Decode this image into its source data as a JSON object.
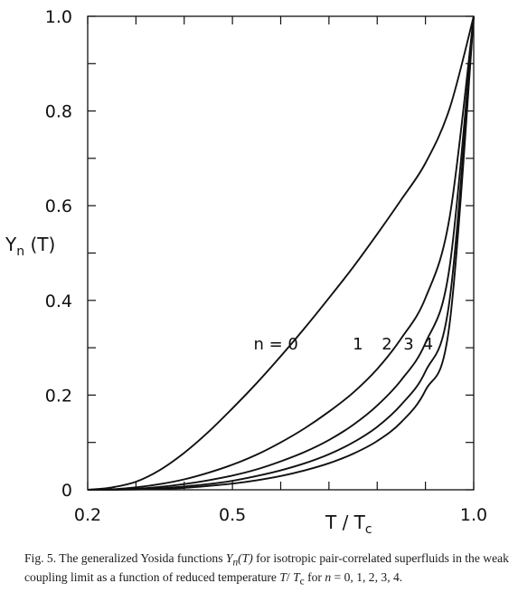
{
  "chart_data": {
    "type": "line",
    "ylabel": {
      "main": "Y",
      "sub": "n",
      "rest": " (T)"
    },
    "xlabel": {
      "main": "T / T",
      "sub": "c"
    },
    "xlim": [
      0.2,
      1.0
    ],
    "ylim": [
      0,
      1.0
    ],
    "x_ticklabels": [
      {
        "value": 0.2,
        "label": "0.2"
      },
      {
        "value": 0.5,
        "label": "0.5"
      },
      {
        "value": 1.0,
        "label": "1.0"
      }
    ],
    "y_ticklabels": [
      {
        "value": 0,
        "label": "0"
      },
      {
        "value": 0.2,
        "label": "0.2"
      },
      {
        "value": 0.4,
        "label": "0.4"
      },
      {
        "value": 0.6,
        "label": "0.6"
      },
      {
        "value": 0.8,
        "label": "0.8"
      },
      {
        "value": 1.0,
        "label": "1.0"
      }
    ],
    "x_minor_ticks": [
      0.3,
      0.4,
      0.6,
      0.7,
      0.8,
      0.9
    ],
    "y_minor_ticks": [
      0.1,
      0.3,
      0.5,
      0.7,
      0.9
    ],
    "grid": false,
    "series": [
      {
        "name": "n = 0",
        "x": [
          0.2,
          0.25,
          0.3,
          0.35,
          0.4,
          0.45,
          0.5,
          0.55,
          0.6,
          0.65,
          0.7,
          0.75,
          0.8,
          0.85,
          0.9,
          0.95,
          1.0
        ],
        "y": [
          0.0,
          0.005,
          0.017,
          0.042,
          0.078,
          0.122,
          0.172,
          0.225,
          0.282,
          0.342,
          0.405,
          0.47,
          0.54,
          0.613,
          0.69,
          0.805,
          1.0
        ]
      },
      {
        "name": "1",
        "x": [
          0.2,
          0.25,
          0.3,
          0.35,
          0.4,
          0.45,
          0.5,
          0.55,
          0.6,
          0.65,
          0.7,
          0.75,
          0.8,
          0.85,
          0.9,
          0.95,
          1.0
        ],
        "y": [
          0.0,
          0.001,
          0.005,
          0.012,
          0.022,
          0.036,
          0.053,
          0.074,
          0.1,
          0.13,
          0.165,
          0.205,
          0.255,
          0.32,
          0.405,
          0.575,
          1.0
        ]
      },
      {
        "name": "2",
        "x": [
          0.2,
          0.25,
          0.3,
          0.35,
          0.4,
          0.45,
          0.5,
          0.55,
          0.6,
          0.65,
          0.7,
          0.75,
          0.8,
          0.85,
          0.9,
          0.95,
          1.0
        ],
        "y": [
          0.0,
          0.0005,
          0.002,
          0.006,
          0.012,
          0.02,
          0.03,
          0.043,
          0.06,
          0.08,
          0.105,
          0.137,
          0.178,
          0.232,
          0.31,
          0.47,
          1.0
        ]
      },
      {
        "name": "3",
        "x": [
          0.2,
          0.25,
          0.3,
          0.35,
          0.4,
          0.45,
          0.5,
          0.55,
          0.6,
          0.65,
          0.7,
          0.75,
          0.8,
          0.85,
          0.9,
          0.95,
          1.0
        ],
        "y": [
          0.0,
          0.0003,
          0.001,
          0.003,
          0.007,
          0.012,
          0.019,
          0.029,
          0.041,
          0.056,
          0.075,
          0.1,
          0.133,
          0.18,
          0.25,
          0.4,
          1.0
        ]
      },
      {
        "name": "4",
        "x": [
          0.2,
          0.25,
          0.3,
          0.35,
          0.4,
          0.45,
          0.5,
          0.55,
          0.6,
          0.65,
          0.7,
          0.75,
          0.8,
          0.85,
          0.9,
          0.95,
          1.0
        ],
        "y": [
          0.0,
          0.0002,
          0.0006,
          0.002,
          0.004,
          0.008,
          0.013,
          0.02,
          0.029,
          0.041,
          0.056,
          0.076,
          0.103,
          0.143,
          0.21,
          0.35,
          1.0
        ]
      }
    ],
    "curve_labels": [
      {
        "text": "n = 0",
        "x": 0.59,
        "y": 0.31
      },
      {
        "text": "1",
        "x": 0.76,
        "y": 0.31
      },
      {
        "text": "2",
        "x": 0.82,
        "y": 0.31
      },
      {
        "text": "3",
        "x": 0.865,
        "y": 0.31
      },
      {
        "text": "4",
        "x": 0.905,
        "y": 0.31
      }
    ]
  },
  "caption": {
    "prefix": "Fig. 5.  The generalized Yosida functions ",
    "func": "Y",
    "func_sub": "n",
    "func_arg": "(T)",
    "middle": " for isotropic pair-correlated superfluids in the weak coupling limit as a function of reduced temperature ",
    "var_T": "T",
    "slash": "/ ",
    "var_Tc": "T",
    "var_Tc_sub": "c",
    "for_text": " for ",
    "var_n": "n",
    "values": " = 0, 1, 2, 3, 4."
  }
}
